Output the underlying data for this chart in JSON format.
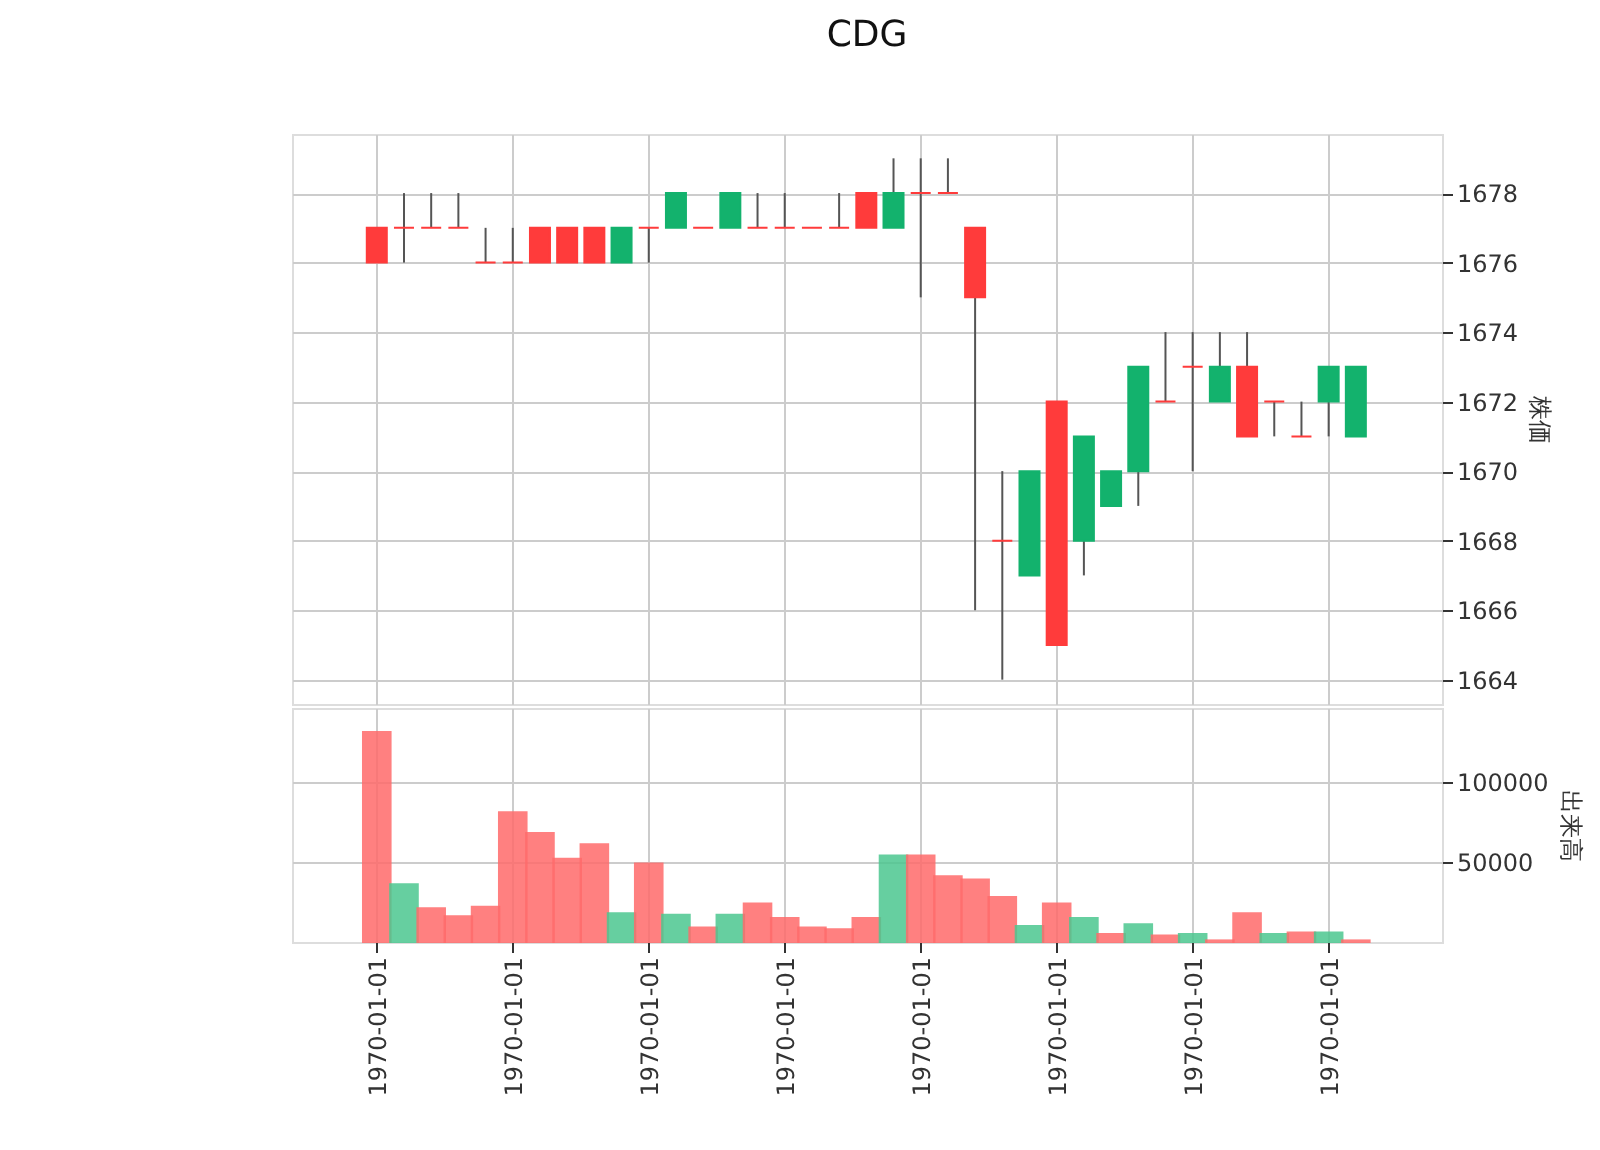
{
  "chart_data": [
    {
      "type": "candlestick",
      "title": "CDG",
      "ylabel": "株価",
      "categories": [
        "1970-01-01",
        null,
        null,
        null,
        null,
        "1970-01-01",
        null,
        null,
        null,
        null,
        "1970-01-01",
        null,
        null,
        null,
        null,
        "1970-01-01",
        null,
        null,
        null,
        null,
        "1970-01-01",
        null,
        null,
        null,
        null,
        "1970-01-01",
        null,
        null,
        null,
        null,
        "1970-01-01",
        null,
        null,
        null,
        null,
        "1970-01-01",
        null
      ],
      "ohlc": [
        [
          1677,
          1677,
          1676,
          1676
        ],
        [
          1677,
          1678,
          1676,
          1677
        ],
        [
          1677,
          1678,
          1677,
          1677
        ],
        [
          1677,
          1678,
          1677,
          1677
        ],
        [
          1676,
          1677,
          1676,
          1676
        ],
        [
          1676,
          1677,
          1676,
          1676
        ],
        [
          1677,
          1677,
          1676,
          1676
        ],
        [
          1677,
          1677,
          1676,
          1676
        ],
        [
          1677,
          1677,
          1676,
          1676
        ],
        [
          1676,
          1677,
          1676,
          1677
        ],
        [
          1677,
          1677,
          1676,
          1677
        ],
        [
          1677,
          1678,
          1677,
          1678
        ],
        [
          1677,
          1677,
          1677,
          1677
        ],
        [
          1677,
          1678,
          1677,
          1678
        ],
        [
          1677,
          1678,
          1677,
          1677
        ],
        [
          1677,
          1678,
          1677,
          1677
        ],
        [
          1677,
          1677,
          1677,
          1677
        ],
        [
          1677,
          1678,
          1677,
          1677
        ],
        [
          1678,
          1678,
          1677,
          1677
        ],
        [
          1677,
          1679,
          1677,
          1678
        ],
        [
          1678,
          1679,
          1675,
          1678
        ],
        [
          1678,
          1679,
          1678,
          1678
        ],
        [
          1677,
          1677,
          1666,
          1675
        ],
        [
          1668,
          1670,
          1664,
          1668
        ],
        [
          1667,
          1670,
          1667,
          1670
        ],
        [
          1672,
          1672,
          1665,
          1665
        ],
        [
          1668,
          1671,
          1667,
          1671
        ],
        [
          1669,
          1670,
          1669,
          1670
        ],
        [
          1670,
          1673,
          1669,
          1673
        ],
        [
          1672,
          1674,
          1672,
          1672
        ],
        [
          1673,
          1674,
          1670,
          1673
        ],
        [
          1672,
          1674,
          1672,
          1673
        ],
        [
          1673,
          1674,
          1671,
          1671
        ],
        [
          1672,
          1672,
          1671,
          1672
        ],
        [
          1671,
          1672,
          1671,
          1671
        ],
        [
          1672,
          1673,
          1671,
          1673
        ],
        [
          1671,
          1673,
          1671,
          1673
        ]
      ],
      "colors": [
        "#ff3b3b",
        "#ff3b3b",
        "#ff3b3b",
        "#ff3b3b",
        "#ff3b3b",
        "#ff3b3b",
        "#ff3b3b",
        "#ff3b3b",
        "#ff3b3b",
        "#13b26d",
        "#ff3b3b",
        "#13b26d",
        "#ff3b3b",
        "#13b26d",
        "#ff3b3b",
        "#ff3b3b",
        "#ff3b3b",
        "#ff3b3b",
        "#ff3b3b",
        "#13b26d",
        "#ff3b3b",
        "#ff3b3b",
        "#ff3b3b",
        "#ff3b3b",
        "#13b26d",
        "#ff3b3b",
        "#13b26d",
        "#13b26d",
        "#13b26d",
        "#ff3b3b",
        "#ff3b3b",
        "#13b26d",
        "#ff3b3b",
        "#ff3b3b",
        "#ff3b3b",
        "#13b26d",
        "#13b26d"
      ],
      "ylim": [
        1663.3,
        1679.7
      ],
      "yticks": [
        1664,
        1666,
        1668,
        1670,
        1672,
        1674,
        1676,
        1678
      ],
      "grid": true,
      "tick_labels": "y"
    },
    {
      "type": "bar",
      "ylabel": "出来高",
      "categories": [
        "1970-01-01",
        null,
        null,
        null,
        null,
        "1970-01-01",
        null,
        null,
        null,
        null,
        "1970-01-01",
        null,
        null,
        null,
        null,
        "1970-01-01",
        null,
        null,
        null,
        null,
        "1970-01-01",
        null,
        null,
        null,
        null,
        "1970-01-01",
        null,
        null,
        null,
        null,
        "1970-01-01",
        null,
        null,
        null,
        null,
        "1970-01-01",
        null
      ],
      "values": [
        131000,
        36000,
        21000,
        16000,
        22000,
        81000,
        68000,
        52000,
        61000,
        18000,
        49000,
        17000,
        9000,
        17000,
        24000,
        15000,
        9000,
        8000,
        15000,
        54000,
        54000,
        41000,
        39000,
        28000,
        10000,
        24000,
        15000,
        5000,
        11000,
        4000,
        5000,
        1000,
        18000,
        5000,
        6000,
        6000,
        1000
      ],
      "colors": [
        "#ff6b6b",
        "#4cc790",
        "#ff6b6b",
        "#ff6b6b",
        "#ff6b6b",
        "#ff6b6b",
        "#ff6b6b",
        "#ff6b6b",
        "#ff6b6b",
        "#4cc790",
        "#ff6b6b",
        "#4cc790",
        "#ff6b6b",
        "#4cc790",
        "#ff6b6b",
        "#ff6b6b",
        "#ff6b6b",
        "#ff6b6b",
        "#ff6b6b",
        "#4cc790",
        "#ff6b6b",
        "#ff6b6b",
        "#ff6b6b",
        "#ff6b6b",
        "#4cc790",
        "#ff6b6b",
        "#4cc790",
        "#ff6b6b",
        "#4cc790",
        "#ff6b6b",
        "#4cc790",
        "#ff6b6b",
        "#ff6b6b",
        "#4cc790",
        "#ff6b6b",
        "#4cc790",
        "#ff6b6b"
      ],
      "ylim": [
        0,
        146000
      ],
      "yticks": [
        50000,
        100000
      ],
      "grid": true
    }
  ]
}
